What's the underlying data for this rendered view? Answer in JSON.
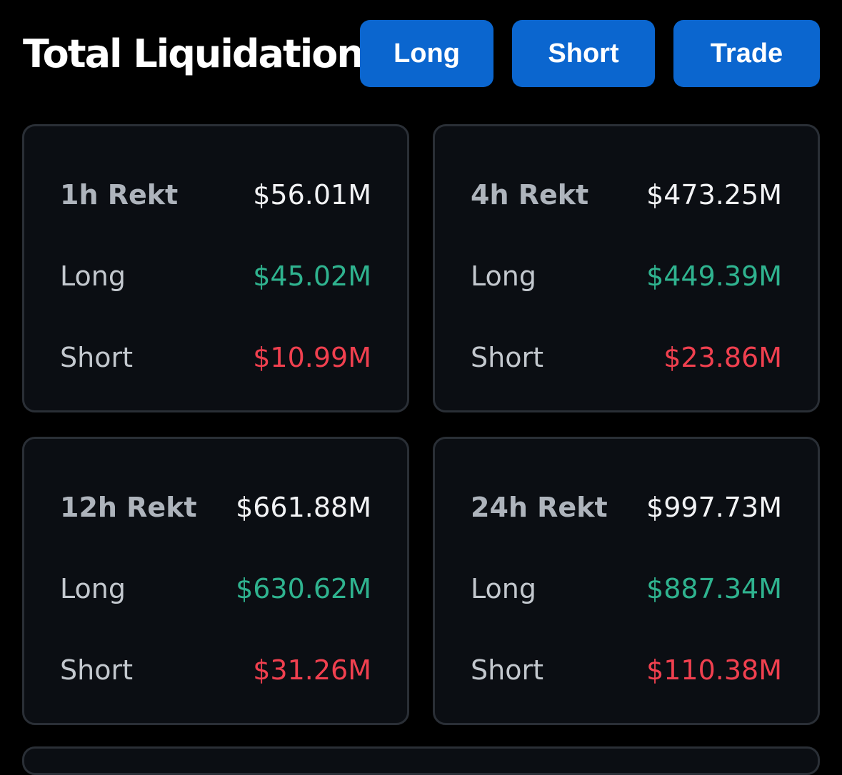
{
  "header": {
    "title": "Total Liquidations",
    "buttons": {
      "long": "Long",
      "short": "Short",
      "trade": "Trade"
    }
  },
  "cards": [
    {
      "period_label": "1h Rekt",
      "total": "$56.01M",
      "long_label": "Long",
      "long_value": "$45.02M",
      "short_label": "Short",
      "short_value": "$10.99M"
    },
    {
      "period_label": "4h Rekt",
      "total": "$473.25M",
      "long_label": "Long",
      "long_value": "$449.39M",
      "short_label": "Short",
      "short_value": "$23.86M"
    },
    {
      "period_label": "12h Rekt",
      "total": "$661.88M",
      "long_label": "Long",
      "long_value": "$630.62M",
      "short_label": "Short",
      "short_value": "$31.26M"
    },
    {
      "period_label": "24h Rekt",
      "total": "$997.73M",
      "long_label": "Long",
      "long_value": "$887.34M",
      "short_label": "Short",
      "short_value": "$110.38M"
    }
  ],
  "colors": {
    "background": "#000000",
    "card_background": "#0b0e13",
    "card_border": "#2a2f36",
    "button": "#0b66cf",
    "long": "#2fb38f",
    "short": "#f0404f"
  }
}
